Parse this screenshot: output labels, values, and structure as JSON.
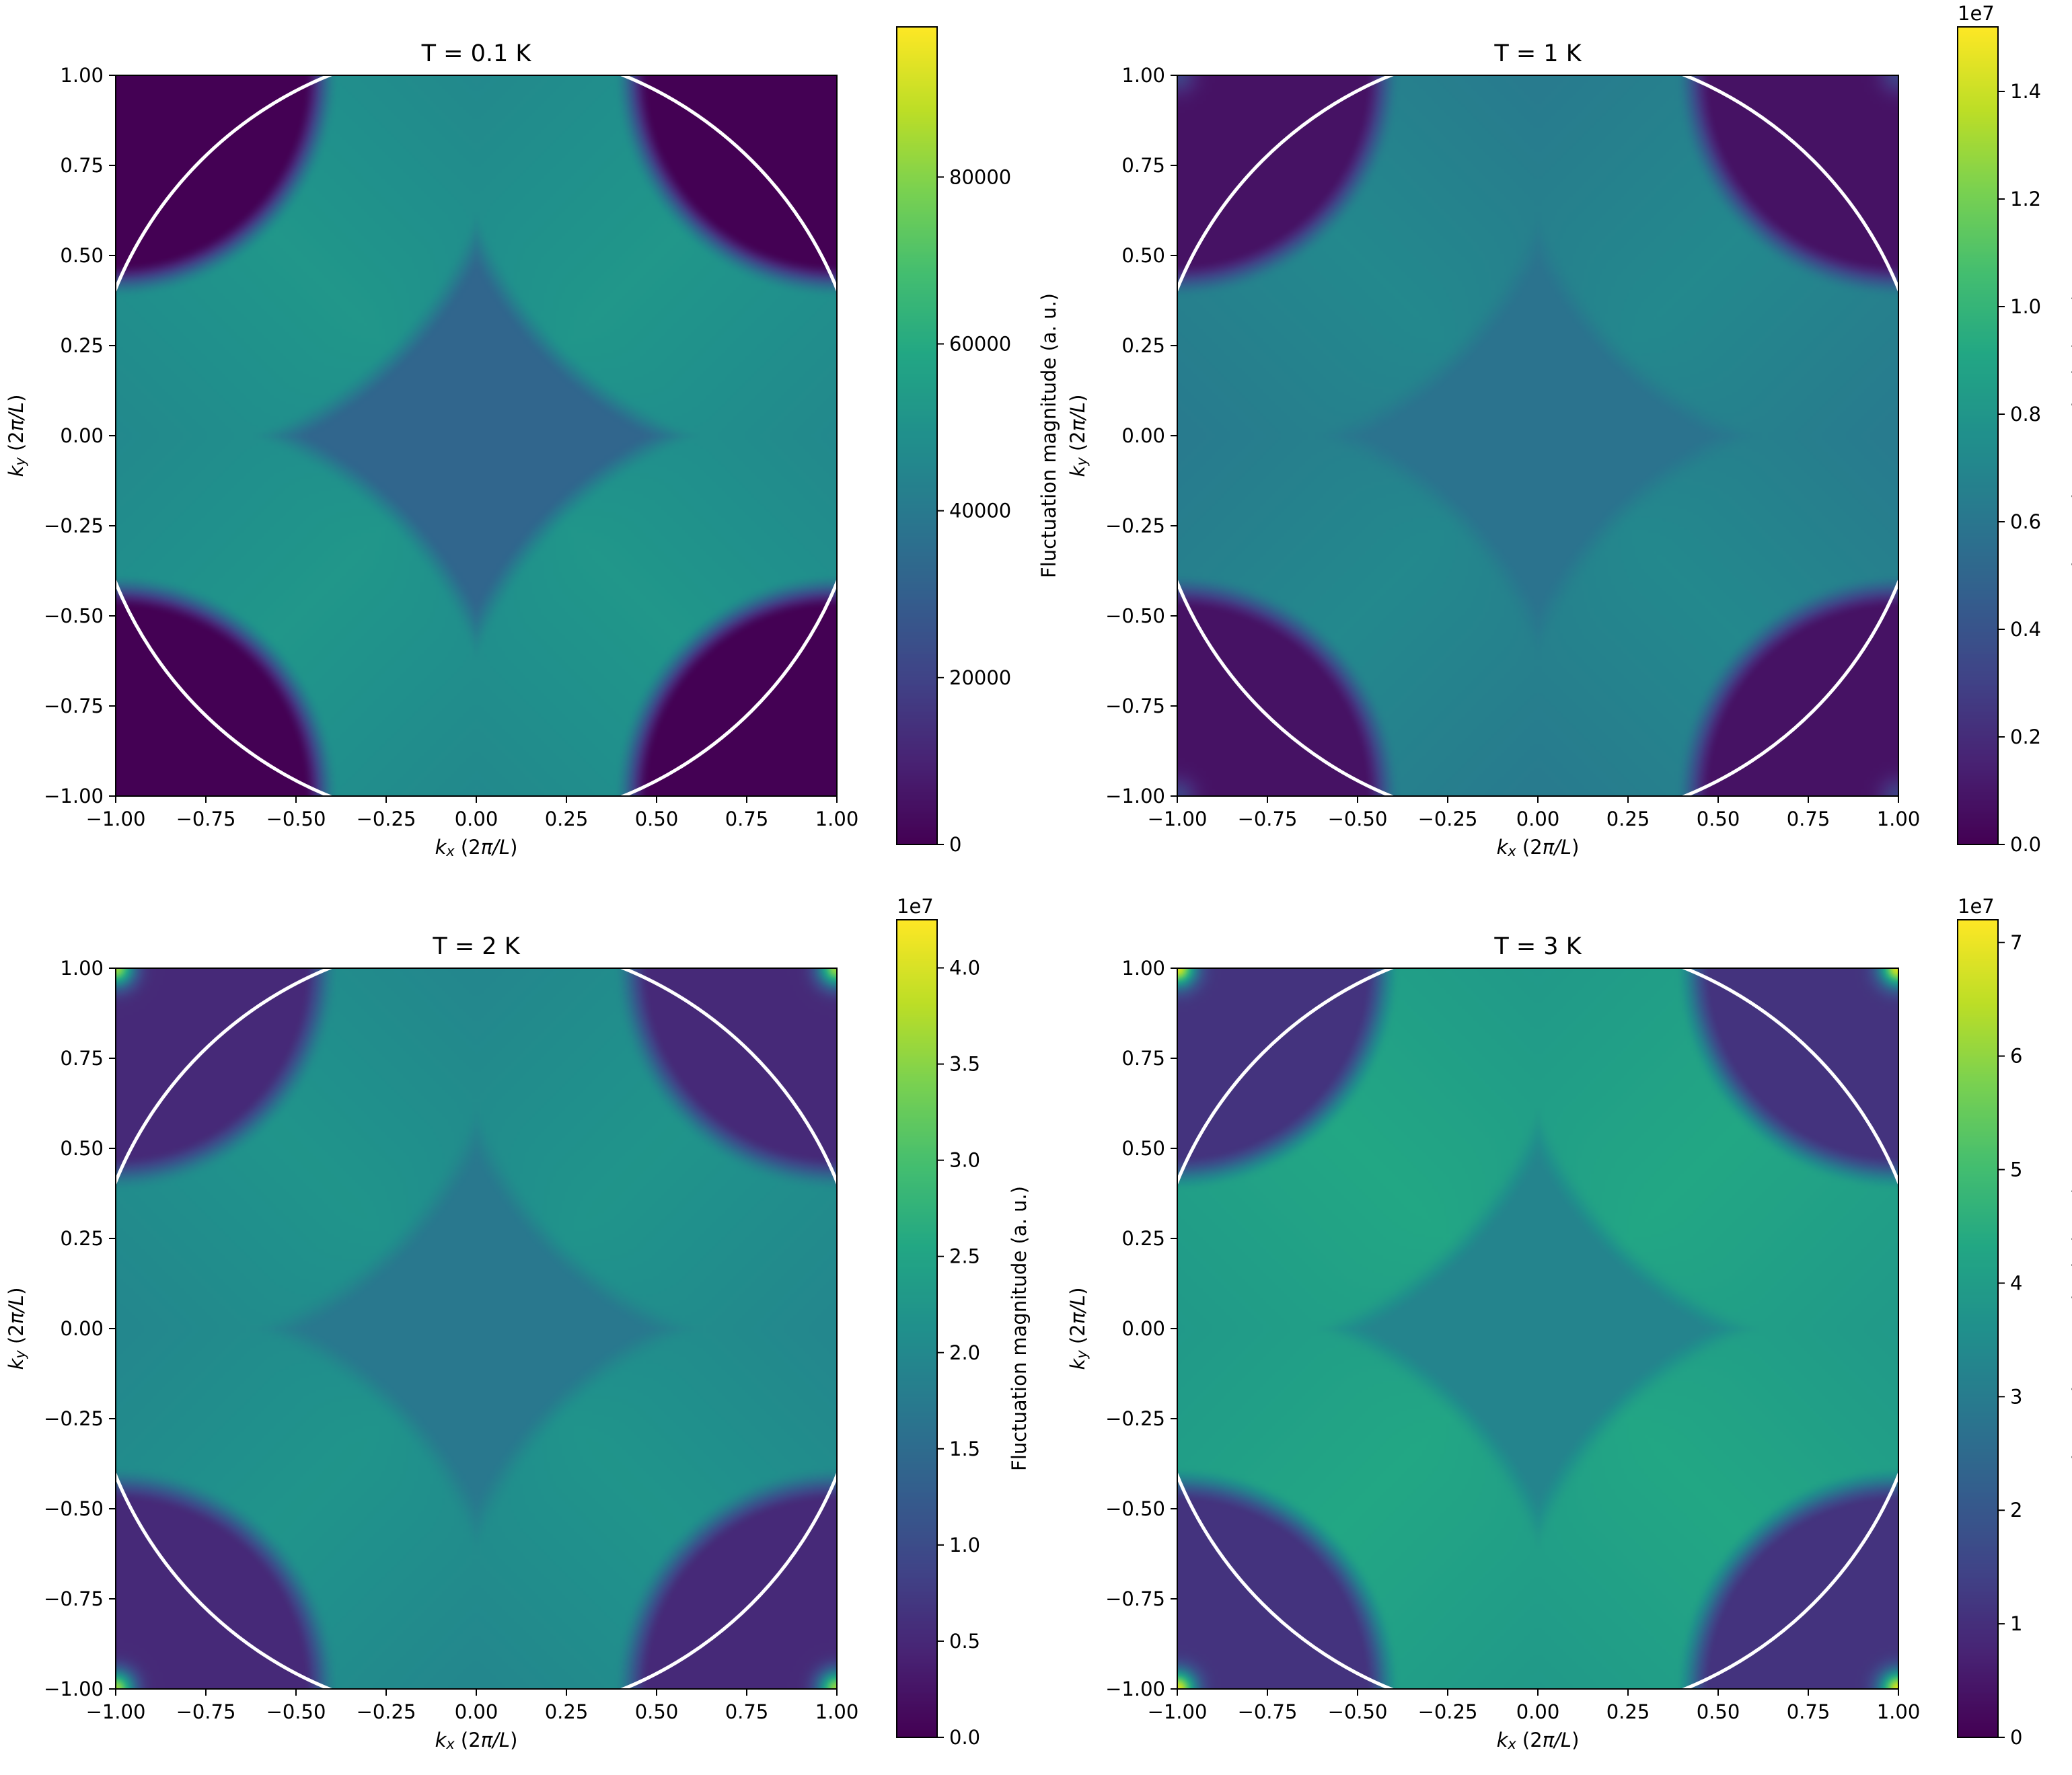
{
  "figure": {
    "layout": "2x2 grid",
    "background": "#ffffff"
  },
  "chart_data": [
    {
      "type": "heatmap",
      "title": "T = 0.1 K",
      "xlabel": "k_x (2π/L)",
      "ylabel": "k_y (2π/L)",
      "xlim": [
        -1.0,
        1.0
      ],
      "ylim": [
        -1.0,
        1.0
      ],
      "xticks": [
        "−1.00",
        "−0.75",
        "−0.50",
        "−0.25",
        "0.00",
        "0.25",
        "0.50",
        "0.75",
        "1.00"
      ],
      "yticks": [
        "−1.00",
        "−0.75",
        "−0.50",
        "−0.25",
        "0.00",
        "0.25",
        "0.50",
        "0.75",
        "1.00"
      ],
      "colormap": "viridis",
      "colorbar": {
        "label": "Fluctuation magnitude (a. u.)",
        "range": [
          0,
          98000
        ],
        "offset_text": "",
        "ticks": [
          0,
          20000,
          40000,
          60000,
          80000
        ],
        "tick_labels": [
          "0",
          "20000",
          "40000",
          "60000",
          "80000"
        ]
      },
      "field": {
        "center": 0.33,
        "band": 0.53,
        "gap": 0.0,
        "corner": 0.0
      },
      "circle": {
        "center": [
          0,
          0
        ],
        "radius_data": 1.08,
        "color": "#ffffff"
      }
    },
    {
      "type": "heatmap",
      "title": "T = 1 K",
      "xlabel": "k_x (2π/L)",
      "ylabel": "k_y (2π/L)",
      "xlim": [
        -1.0,
        1.0
      ],
      "ylim": [
        -1.0,
        1.0
      ],
      "xticks": [
        "−1.00",
        "−0.75",
        "−0.50",
        "−0.25",
        "0.00",
        "0.25",
        "0.50",
        "0.75",
        "1.00"
      ],
      "yticks": [
        "−1.00",
        "−0.75",
        "−0.50",
        "−0.25",
        "0.00",
        "0.25",
        "0.50",
        "0.75",
        "1.00"
      ],
      "colormap": "viridis",
      "colorbar": {
        "label": "Fluctuation magnitude (a. u.)",
        "range": [
          0,
          1.52
        ],
        "offset_text": "1e7",
        "ticks": [
          0,
          0.2,
          0.4,
          0.6,
          0.8,
          1.0,
          1.2,
          1.4
        ],
        "tick_labels": [
          "0.0",
          "0.2",
          "0.4",
          "0.6",
          "0.8",
          "1.0",
          "1.2",
          "1.4"
        ]
      },
      "field": {
        "center": 0.38,
        "band": 0.47,
        "gap": 0.05,
        "corner": 0.2
      },
      "circle": {
        "center": [
          0,
          0
        ],
        "radius_data": 1.08,
        "color": "#ffffff"
      }
    },
    {
      "type": "heatmap",
      "title": "T = 2 K",
      "xlabel": "k_x (2π/L)",
      "ylabel": "k_y (2π/L)",
      "xlim": [
        -1.0,
        1.0
      ],
      "ylim": [
        -1.0,
        1.0
      ],
      "xticks": [
        "−1.00",
        "−0.75",
        "−0.50",
        "−0.25",
        "0.00",
        "0.25",
        "0.50",
        "0.75",
        "1.00"
      ],
      "yticks": [
        "−1.00",
        "−0.75",
        "−0.50",
        "−0.25",
        "0.00",
        "0.25",
        "0.50",
        "0.75",
        "1.00"
      ],
      "colormap": "viridis",
      "colorbar": {
        "label": "Fluctuation magnitude (a. u.)",
        "range": [
          0,
          4.25
        ],
        "offset_text": "1e7",
        "ticks": [
          0,
          0.5,
          1.0,
          1.5,
          2.0,
          2.5,
          3.0,
          3.5,
          4.0
        ],
        "tick_labels": [
          "0.0",
          "0.5",
          "1.0",
          "1.5",
          "2.0",
          "2.5",
          "3.0",
          "3.5",
          "4.0"
        ]
      },
      "field": {
        "center": 0.4,
        "band": 0.52,
        "gap": 0.12,
        "corner": 0.85
      },
      "circle": {
        "center": [
          0,
          0
        ],
        "radius_data": 1.08,
        "color": "#ffffff"
      }
    },
    {
      "type": "heatmap",
      "title": "T = 3 K",
      "xlabel": "k_x (2π/L)",
      "ylabel": "k_y (2π/L)",
      "xlim": [
        -1.0,
        1.0
      ],
      "ylim": [
        -1.0,
        1.0
      ],
      "xticks": [
        "−1.00",
        "−0.75",
        "−0.50",
        "−0.25",
        "0.00",
        "0.25",
        "0.50",
        "0.75",
        "1.00"
      ],
      "yticks": [
        "−1.00",
        "−0.75",
        "−0.50",
        "−0.25",
        "0.00",
        "0.25",
        "0.50",
        "0.75",
        "1.00"
      ],
      "colormap": "viridis",
      "colorbar": {
        "label": "Fluctuation magnitude (a. u.)",
        "range": [
          0,
          7.2
        ],
        "offset_text": "1e7",
        "ticks": [
          0,
          1,
          2,
          3,
          4,
          5,
          6,
          7
        ],
        "tick_labels": [
          "0",
          "1",
          "2",
          "3",
          "4",
          "5",
          "6",
          "7"
        ]
      },
      "field": {
        "center": 0.45,
        "band": 0.6,
        "gap": 0.15,
        "corner": 0.95
      },
      "circle": {
        "center": [
          0,
          0
        ],
        "radius_data": 1.08,
        "color": "#ffffff"
      }
    }
  ]
}
